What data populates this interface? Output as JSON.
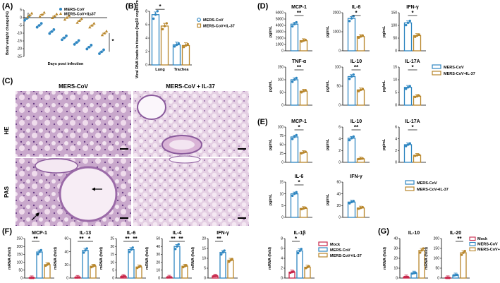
{
  "panel_labels": {
    "A": "(A)",
    "B": "(B)",
    "C": "(C)",
    "D": "(D)",
    "E": "(E)",
    "F": "(F)",
    "G": "(G)"
  },
  "colors": {
    "mock": "#c8264a",
    "mers": "#2e86c1",
    "il37": "#b8862b"
  },
  "legend_main": [
    "MERS-CoV",
    "MERS-CoV+IL-37"
  ],
  "legend_three": [
    "Mock",
    "MERS-CoV",
    "MERS-CoV+IL-37"
  ],
  "panel_c": {
    "col1": "MERS-CoV",
    "col2": "MERS-CoV + IL-37",
    "row1": "HE",
    "row2": "PAS"
  },
  "chart_data": [
    {
      "id": "A",
      "type": "scatter",
      "ylabel": "Body weight change(%)",
      "xlabel": "Days post infection",
      "xticks": [
        "0",
        "5"
      ],
      "yticks": [
        5,
        0,
        -5,
        -10,
        -15,
        -20,
        -25
      ],
      "ylim": [
        -25,
        5
      ],
      "series": [
        {
          "name": "MERS-CoV",
          "points": [
            [
              0,
              -0.5
            ],
            [
              1,
              -5
            ],
            [
              2,
              -9
            ],
            [
              3,
              -13
            ],
            [
              4,
              -16
            ],
            [
              5,
              -19
            ],
            [
              6,
              -22
            ]
          ]
        },
        {
          "name": "MERS-CoV+IL-37",
          "points": [
            [
              0,
              1.5
            ],
            [
              1,
              2
            ],
            [
              2,
              1
            ],
            [
              3,
              0
            ],
            [
              4,
              -2
            ],
            [
              5,
              -5
            ],
            [
              6,
              -10
            ]
          ]
        }
      ],
      "significance": "*"
    },
    {
      "id": "B",
      "type": "bar",
      "ylabel": "Viral RNA loads in tissues (log10 copies/ml)",
      "categories": [
        "Lung",
        "Trachea"
      ],
      "yticks": [
        0,
        2,
        4,
        6,
        8
      ],
      "ylim": [
        0,
        8
      ],
      "series": [
        {
          "name": "MERS-CoV",
          "values": [
            7.5,
            3.0
          ]
        },
        {
          "name": "MERS-CoV+IL-37",
          "values": [
            5.8,
            2.9
          ]
        }
      ],
      "significance": [
        "*",
        ""
      ]
    },
    {
      "id": "D1",
      "type": "bar",
      "title": "MCP-1",
      "ylabel": "pg/mL",
      "yticks": [
        0,
        1000,
        2000,
        3000,
        4000,
        5000,
        6000
      ],
      "ylim": [
        0,
        6000
      ],
      "series": [
        {
          "name": "MERS-CoV",
          "values": [
            4200
          ]
        },
        {
          "name": "MERS-CoV+IL-37",
          "values": [
            1600
          ]
        }
      ],
      "significance": "**"
    },
    {
      "id": "D2",
      "type": "bar",
      "title": "IL-6",
      "ylabel": "pg/mL",
      "yticks": [
        0,
        1000,
        2000
      ],
      "ylim": [
        0,
        2000
      ],
      "series": [
        {
          "name": "MERS-CoV",
          "values": [
            1700
          ]
        },
        {
          "name": "MERS-CoV+IL-37",
          "values": [
            750
          ]
        }
      ],
      "significance": "*"
    },
    {
      "id": "D3",
      "type": "bar",
      "title": "IFN-γ",
      "ylabel": "pg/mL",
      "yticks": [
        0,
        50,
        100,
        150
      ],
      "ylim": [
        0,
        150
      ],
      "series": [
        {
          "name": "MERS-CoV",
          "values": [
            110
          ]
        },
        {
          "name": "MERS-CoV+IL-37",
          "values": [
            60
          ]
        }
      ],
      "significance": "*"
    },
    {
      "id": "D4",
      "type": "bar",
      "title": "TNF-α",
      "ylabel": "pg/mL",
      "yticks": [
        0,
        50,
        100,
        150
      ],
      "ylim": [
        0,
        150
      ],
      "series": [
        {
          "name": "MERS-CoV",
          "values": [
            100
          ]
        },
        {
          "name": "MERS-CoV+IL-37",
          "values": [
            55
          ]
        }
      ],
      "significance": "**"
    },
    {
      "id": "D5",
      "type": "bar",
      "title": "IL-10",
      "ylabel": "pg/mL",
      "yticks": [
        0,
        50,
        100
      ],
      "ylim": [
        0,
        100
      ],
      "series": [
        {
          "name": "MERS-CoV",
          "values": [
            75
          ]
        },
        {
          "name": "MERS-CoV+IL-37",
          "values": [
            40
          ]
        }
      ],
      "significance": "**"
    },
    {
      "id": "D6",
      "type": "bar",
      "title": "IL-17A",
      "ylabel": "pg/mL",
      "yticks": [
        0,
        5,
        10,
        15
      ],
      "ylim": [
        0,
        15
      ],
      "series": [
        {
          "name": "MERS-CoV",
          "values": [
            7
          ]
        },
        {
          "name": "MERS-CoV+IL-37",
          "values": [
            3.5
          ]
        }
      ],
      "significance": "*"
    },
    {
      "id": "E1",
      "type": "bar",
      "title": "MCP-1",
      "ylabel": "pg/mL",
      "yticks": [
        0,
        25,
        50,
        75,
        100
      ],
      "ylim": [
        0,
        100
      ],
      "series": [
        {
          "name": "MERS-CoV",
          "values": [
            72
          ]
        },
        {
          "name": "MERS-CoV+IL-37",
          "values": [
            28
          ]
        }
      ],
      "significance": "*"
    },
    {
      "id": "E2",
      "type": "bar",
      "title": "IL-10",
      "ylabel": "pg/mL",
      "yticks": [
        0,
        2,
        4,
        6
      ],
      "ylim": [
        0,
        6
      ],
      "series": [
        {
          "name": "MERS-CoV",
          "values": [
            4.1
          ]
        },
        {
          "name": "MERS-CoV+IL-37",
          "values": [
            0.6
          ]
        }
      ],
      "significance": "**"
    },
    {
      "id": "E3",
      "type": "bar",
      "title": "IL-17A",
      "ylabel": "pg/mL",
      "yticks": [
        0,
        2,
        4,
        6
      ],
      "ylim": [
        0,
        6
      ],
      "series": [
        {
          "name": "MERS-CoV",
          "values": [
            3.0
          ]
        },
        {
          "name": "MERS-CoV+IL-37",
          "values": [
            1.2
          ]
        }
      ],
      "significance": "*"
    },
    {
      "id": "E4",
      "type": "bar",
      "title": "IL-6",
      "ylabel": "pg/mL",
      "yticks": [
        0,
        5,
        10,
        15
      ],
      "ylim": [
        0,
        15
      ],
      "series": [
        {
          "name": "MERS-CoV",
          "values": [
            10
          ]
        },
        {
          "name": "MERS-CoV+IL-37",
          "values": [
            3.8
          ]
        }
      ],
      "significance": "*"
    },
    {
      "id": "E5",
      "type": "bar",
      "title": "IFN-γ",
      "ylabel": "pg/mL",
      "yticks": [
        0,
        20,
        40,
        60
      ],
      "ylim": [
        0,
        60
      ],
      "series": [
        {
          "name": "MERS-CoV",
          "values": [
            26
          ]
        },
        {
          "name": "MERS-CoV+IL-37",
          "values": [
            16
          ]
        }
      ],
      "significance": ""
    },
    {
      "id": "F1",
      "type": "bar",
      "title": "MCP-1",
      "ylabel": "mRNA (fold)",
      "yticks": [
        0,
        50,
        100,
        150,
        200,
        250
      ],
      "ylim": [
        0,
        250
      ],
      "series": [
        {
          "name": "Mock",
          "values": [
            1
          ]
        },
        {
          "name": "MERS-CoV",
          "values": [
            165
          ]
        },
        {
          "name": "MERS-CoV+IL-37",
          "values": [
            85
          ]
        }
      ],
      "significance": [
        "**"
      ]
    },
    {
      "id": "F2",
      "type": "bar",
      "title": "IL-13",
      "ylabel": "mRNA (fold)",
      "yticks": [
        0,
        20,
        40,
        60
      ],
      "ylim": [
        0,
        60
      ],
      "series": [
        {
          "name": "Mock",
          "values": [
            1
          ]
        },
        {
          "name": "MERS-CoV",
          "values": [
            42
          ]
        },
        {
          "name": "MERS-CoV+IL-37",
          "values": [
            18
          ]
        }
      ],
      "significance": [
        "**",
        "*"
      ]
    },
    {
      "id": "F3",
      "type": "bar",
      "title": "IL-6",
      "ylabel": "mRNA (fold)",
      "yticks": [
        0,
        5,
        10,
        15,
        20,
        25
      ],
      "ylim": [
        0,
        25
      ],
      "series": [
        {
          "name": "Mock",
          "values": [
            1
          ]
        },
        {
          "name": "MERS-CoV",
          "values": [
            18
          ]
        },
        {
          "name": "MERS-CoV+IL-37",
          "values": [
            7
          ]
        }
      ],
      "significance": [
        "**",
        "**"
      ]
    },
    {
      "id": "F4",
      "type": "bar",
      "title": "IL-4",
      "ylabel": "mRNA (fold)",
      "yticks": [
        0,
        10,
        20,
        30,
        40,
        50
      ],
      "ylim": [
        0,
        50
      ],
      "series": [
        {
          "name": "Mock",
          "values": [
            1
          ]
        },
        {
          "name": "MERS-CoV",
          "values": [
            40
          ]
        },
        {
          "name": "MERS-CoV+IL-37",
          "values": [
            15
          ]
        }
      ],
      "significance": [
        "**",
        "**"
      ]
    },
    {
      "id": "F5",
      "type": "bar",
      "title": "IFN-γ",
      "ylabel": "mRNA (fold)",
      "yticks": [
        0,
        5,
        10,
        15,
        20
      ],
      "ylim": [
        0,
        20
      ],
      "series": [
        {
          "name": "Mock",
          "values": [
            1
          ]
        },
        {
          "name": "MERS-CoV",
          "values": [
            13
          ]
        },
        {
          "name": "MERS-CoV+IL-37",
          "values": [
            9
          ]
        }
      ],
      "significance": [
        "**"
      ]
    },
    {
      "id": "F6",
      "type": "bar",
      "title": "IL-1β",
      "ylabel": "mRNA (fold)",
      "yticks": [
        0,
        2,
        4,
        6,
        8
      ],
      "ylim": [
        0,
        8
      ],
      "series": [
        {
          "name": "Mock",
          "values": [
            1.2
          ]
        },
        {
          "name": "MERS-CoV",
          "values": [
            5.5
          ]
        },
        {
          "name": "MERS-CoV+IL-37",
          "values": [
            2.2
          ]
        }
      ],
      "significance": [
        "*"
      ]
    },
    {
      "id": "G1",
      "type": "bar",
      "title": "IL-10",
      "ylabel": "mRNA (fold)",
      "yticks": [
        0,
        10,
        20,
        30,
        40
      ],
      "ylim": [
        0,
        40
      ],
      "series": [
        {
          "name": "Mock",
          "values": [
            1
          ]
        },
        {
          "name": "MERS-CoV",
          "values": [
            5
          ]
        },
        {
          "name": "MERS-CoV+IL-37",
          "values": [
            28
          ]
        }
      ],
      "significance": []
    },
    {
      "id": "G2",
      "type": "bar",
      "title": "IL-20",
      "ylabel": "mRNA (fold)",
      "yticks": [
        0,
        50,
        100,
        150,
        200
      ],
      "ylim": [
        0,
        200
      ],
      "series": [
        {
          "name": "Mock",
          "values": [
            1
          ]
        },
        {
          "name": "MERS-CoV",
          "values": [
            15
          ]
        },
        {
          "name": "MERS-CoV+IL-37",
          "values": [
            128
          ]
        }
      ],
      "significance": [
        "**"
      ]
    }
  ]
}
